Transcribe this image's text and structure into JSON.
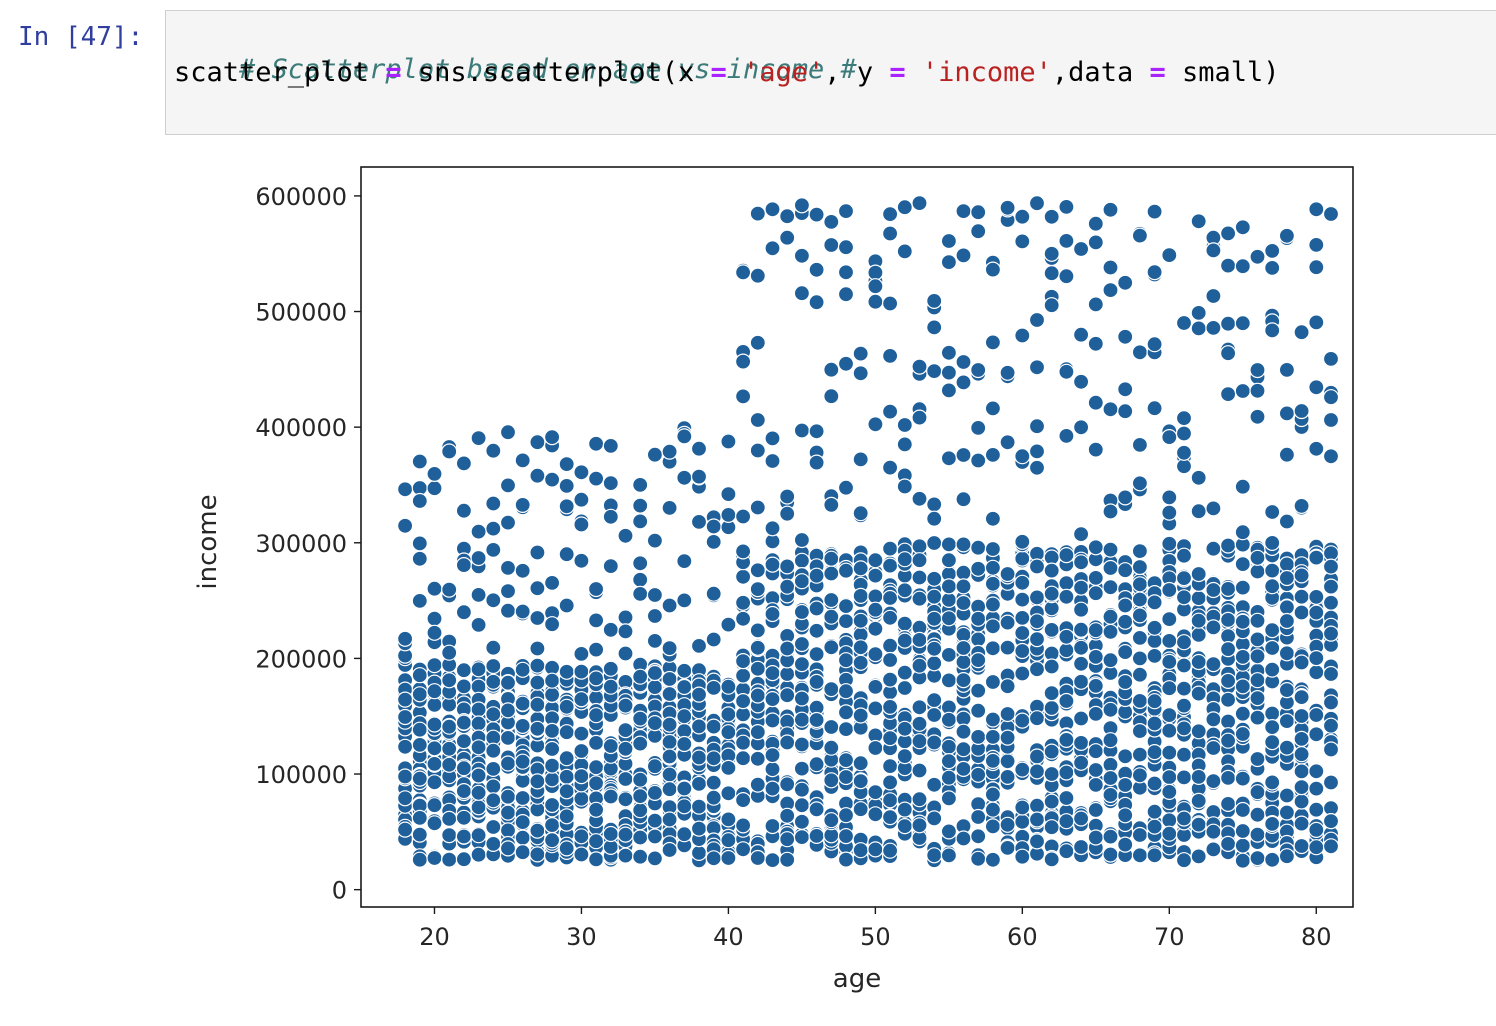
{
  "cell": {
    "prompt": "In [47]:",
    "comment": "# Scatterplot based on age vs income #",
    "code": {
      "var": "scatter_plot",
      "call": "sns.scatterplot(x",
      "x_str": "'age'",
      "y_label": "y",
      "y_str": "'income'",
      "data_label": ",data",
      "data_val": "small)"
    },
    "eq": "="
  },
  "chart_data": {
    "type": "scatter",
    "xlabel": "age",
    "ylabel": "income",
    "xlim": [
      15,
      82.5
    ],
    "ylim": [
      -15000,
      625000
    ],
    "xticks": [
      20,
      30,
      40,
      50,
      60,
      70,
      80
    ],
    "yticks": [
      0,
      100000,
      200000,
      300000,
      400000,
      500000,
      600000
    ],
    "xtick_labels": [
      "20",
      "30",
      "40",
      "50",
      "60",
      "70",
      "80"
    ],
    "ytick_labels": [
      "0",
      "100000",
      "200000",
      "300000",
      "400000",
      "500000",
      "600000"
    ],
    "point_color": "#1f5f9a",
    "grid": false,
    "legend": "none",
    "age_range": [
      18,
      81
    ],
    "groups": [
      {
        "age_min": 18,
        "age_max": 40,
        "income_min": 25000,
        "income_max": 195000,
        "density": "dense"
      },
      {
        "age_min": 18,
        "age_max": 40,
        "income_min": 200000,
        "income_max": 400000,
        "density": "sparse"
      },
      {
        "age_min": 41,
        "age_max": 81,
        "income_min": 25000,
        "income_max": 300000,
        "density": "dense"
      },
      {
        "age_min": 41,
        "age_max": 81,
        "income_min": 300000,
        "income_max": 595000,
        "density": "sparse"
      }
    ]
  }
}
